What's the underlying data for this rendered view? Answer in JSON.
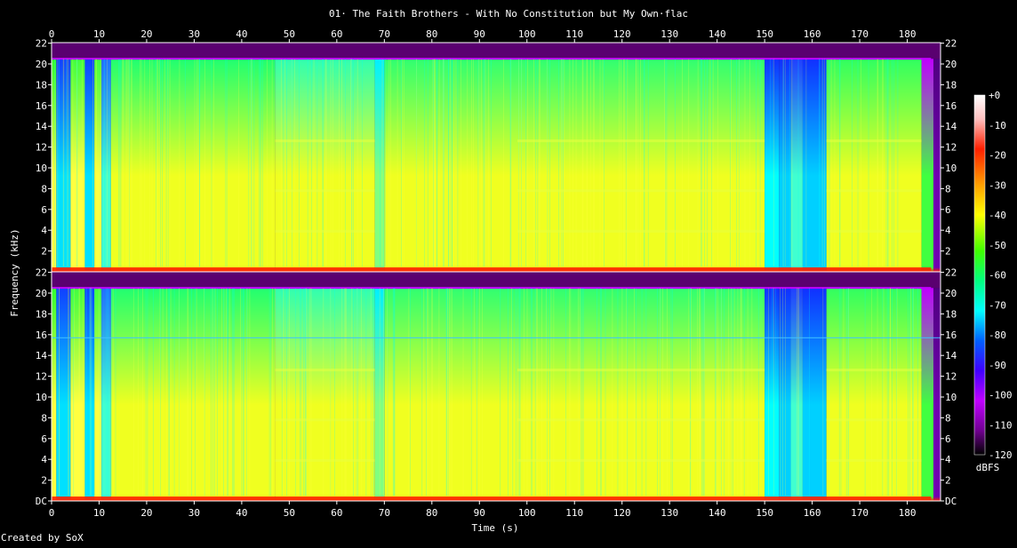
{
  "window": {
    "title": "01· The Faith Brothers - With No Constitution but My Own·flac",
    "credit": "Created by SoX"
  },
  "chart_data": {
    "type": "heatmap",
    "title": "01· The Faith Brothers - With No Constitution but My Own·flac",
    "xlabel": "Time (s)",
    "ylabel": "Frequency (kHz)",
    "xlim": [
      0,
      187
    ],
    "ylim": [
      0,
      22.05
    ],
    "x_ticks": [
      "0",
      "10",
      "20",
      "30",
      "40",
      "50",
      "60",
      "70",
      "80",
      "90",
      "100",
      "110",
      "120",
      "130",
      "140",
      "150",
      "160",
      "170",
      "180"
    ],
    "y_ticks": [
      "DC",
      "2",
      "4",
      "6",
      "8",
      "10",
      "12",
      "14",
      "16",
      "18",
      "20",
      "22"
    ],
    "channels": [
      {
        "name": "",
        "extra_tone_khz": null
      },
      {
        "name": "",
        "extra_tone_khz": 15.7
      }
    ],
    "colorbar": {
      "label": "dBFS",
      "ticks": [
        "+0",
        "-10",
        "-20",
        "-30",
        "-40",
        "-50",
        "-60",
        "-70",
        "-80",
        "-90",
        "-100",
        "-110",
        "-120"
      ],
      "min": -120,
      "max": 0,
      "stops": [
        {
          "db": 0,
          "color": "#ffffff"
        },
        {
          "db": -8,
          "color": "#ffc0c0"
        },
        {
          "db": -18,
          "color": "#ff2000"
        },
        {
          "db": -30,
          "color": "#ffa000"
        },
        {
          "db": -40,
          "color": "#ffff00"
        },
        {
          "db": -52,
          "color": "#40ff00"
        },
        {
          "db": -62,
          "color": "#00ff80"
        },
        {
          "db": -72,
          "color": "#00ffff"
        },
        {
          "db": -82,
          "color": "#0060ff"
        },
        {
          "db": -92,
          "color": "#4000ff"
        },
        {
          "db": -102,
          "color": "#c000ff"
        },
        {
          "db": -112,
          "color": "#700090"
        },
        {
          "db": -120,
          "color": "#000000"
        }
      ]
    },
    "segments": [
      {
        "start": 0,
        "end": 1,
        "low": "#ffff40",
        "high": "#30ff30"
      },
      {
        "start": 1,
        "end": 4,
        "low": "#00e0ff",
        "high": "#1040ff"
      },
      {
        "start": 4,
        "end": 7,
        "low": "#ffff40",
        "high": "#40ff40"
      },
      {
        "start": 7,
        "end": 9,
        "low": "#00e0ff",
        "high": "#1040ff"
      },
      {
        "start": 9,
        "end": 10.5,
        "low": "#ffff40",
        "high": "#40ff40"
      },
      {
        "start": 10.5,
        "end": 12.5,
        "low": "#40ffd0",
        "high": "#2070ff"
      },
      {
        "start": 12.5,
        "end": 47,
        "low": "#f0ff20",
        "high": "#20ff70"
      },
      {
        "start": 47,
        "end": 68,
        "low": "#f0ff20",
        "high": "#30ffb0"
      },
      {
        "start": 68,
        "end": 70,
        "low": "#80ff80",
        "high": "#00f0ff"
      },
      {
        "start": 70,
        "end": 150,
        "low": "#f0ff20",
        "high": "#30ff70"
      },
      {
        "start": 150,
        "end": 153,
        "low": "#00ffff",
        "high": "#1030ff"
      },
      {
        "start": 153,
        "end": 155.5,
        "low": "#00d0ff",
        "high": "#1030ff"
      },
      {
        "start": 155.5,
        "end": 158,
        "low": "#40ffd0",
        "high": "#2040ff"
      },
      {
        "start": 158,
        "end": 163,
        "low": "#00d0ff",
        "high": "#1030ff"
      },
      {
        "start": 163,
        "end": 183,
        "low": "#f0ff20",
        "high": "#30ff60"
      },
      {
        "start": 183,
        "end": 185.5,
        "low": "#40ff40",
        "high": "#c000ff"
      },
      {
        "start": 185.5,
        "end": 187,
        "low": "#7000b0",
        "high": "#500080"
      }
    ],
    "harmonic_bands_khz": [
      12.6,
      7.8,
      3.9
    ],
    "band_start_s": 47,
    "lowpass_khz": 20.5
  }
}
